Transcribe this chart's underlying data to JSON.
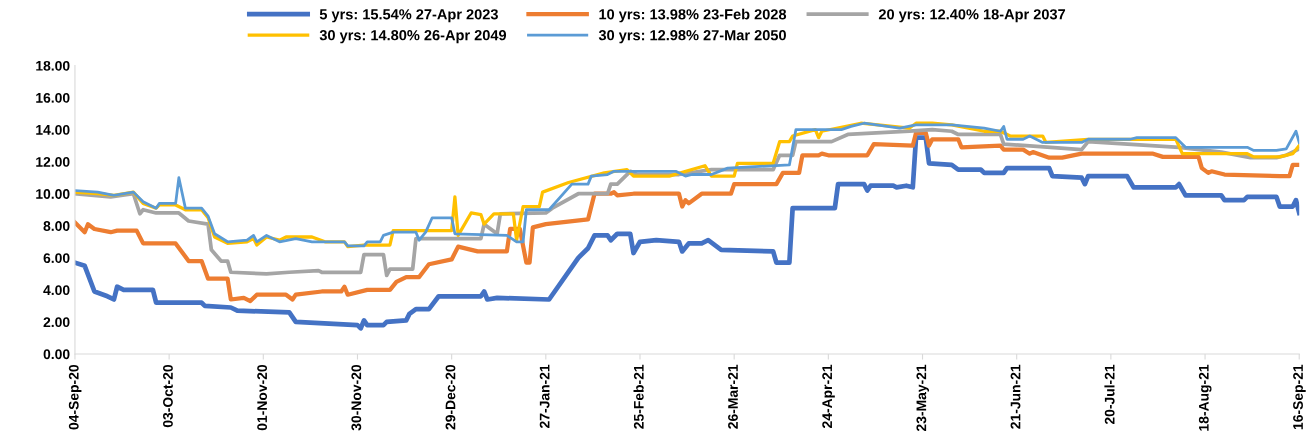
{
  "chart_data": {
    "type": "line",
    "legend": "top",
    "grid": false,
    "marker": "none",
    "line_style": "solid",
    "ylim": [
      0,
      18
    ],
    "yticks": [
      {
        "value": 0,
        "label": "0.00"
      },
      {
        "value": 2,
        "label": "2.00"
      },
      {
        "value": 4,
        "label": "4.00"
      },
      {
        "value": 6,
        "label": "6.00"
      },
      {
        "value": 8,
        "label": "8.00"
      },
      {
        "value": 10,
        "label": "10.00"
      },
      {
        "value": 12,
        "label": "12.00"
      },
      {
        "value": 14,
        "label": "14.00"
      },
      {
        "value": 16,
        "label": "16.00"
      },
      {
        "value": 18,
        "label": "18.00"
      }
    ],
    "xlim": [
      "2020-09-04",
      "2021-09-16"
    ],
    "xticks": [
      {
        "value": "2020-09-04",
        "label": "04-Sep-20"
      },
      {
        "value": "2020-10-03",
        "label": "03-Oct-20"
      },
      {
        "value": "2020-11-01",
        "label": "01-Nov-20"
      },
      {
        "value": "2020-11-30",
        "label": "30-Nov-20"
      },
      {
        "value": "2020-12-29",
        "label": "29-Dec-20"
      },
      {
        "value": "2021-01-27",
        "label": "27-Jan-21"
      },
      {
        "value": "2021-02-25",
        "label": "25-Feb-21"
      },
      {
        "value": "2021-03-26",
        "label": "26-Mar-21"
      },
      {
        "value": "2021-04-24",
        "label": "24-Apr-21"
      },
      {
        "value": "2021-05-23",
        "label": "23-May-21"
      },
      {
        "value": "2021-06-21",
        "label": "21-Jun-21"
      },
      {
        "value": "2021-07-20",
        "label": "20-Jul-21"
      },
      {
        "value": "2021-08-18",
        "label": "18-Aug-21"
      },
      {
        "value": "2021-09-16",
        "label": "16-Sep-21"
      }
    ],
    "series": [
      {
        "name": "5 yrs: 15.54% 27-Apr 2023",
        "color": "#4472c4",
        "x": [
          "2020-09-04",
          "2020-09-07",
          "2020-09-10",
          "2020-09-14",
          "2020-09-16",
          "2020-09-17",
          "2020-09-19",
          "2020-09-28",
          "2020-09-29",
          "2020-10-13",
          "2020-10-14",
          "2020-10-22",
          "2020-10-24",
          "2020-11-09",
          "2020-11-11",
          "2020-11-30",
          "2020-12-01",
          "2020-12-02",
          "2020-12-03",
          "2020-12-08",
          "2020-12-09",
          "2020-12-15",
          "2020-12-16",
          "2020-12-18",
          "2020-12-22",
          "2020-12-25",
          "2021-01-07",
          "2021-01-08",
          "2021-01-09",
          "2021-01-12",
          "2021-01-28",
          "2021-02-06",
          "2021-02-09",
          "2021-02-11",
          "2021-02-15",
          "2021-02-16",
          "2021-02-18",
          "2021-02-22",
          "2021-02-23",
          "2021-02-25",
          "2021-03-02",
          "2021-03-09",
          "2021-03-10",
          "2021-03-12",
          "2021-03-16",
          "2021-03-18",
          "2021-03-22",
          "2021-04-07",
          "2021-04-08",
          "2021-04-12",
          "2021-04-13",
          "2021-04-26",
          "2021-04-27",
          "2021-05-05",
          "2021-05-06",
          "2021-05-07",
          "2021-05-14",
          "2021-05-15",
          "2021-05-18",
          "2021-05-20",
          "2021-05-21",
          "2021-05-24",
          "2021-05-25",
          "2021-06-01",
          "2021-06-03",
          "2021-06-10",
          "2021-06-11",
          "2021-06-17",
          "2021-06-18",
          "2021-07-01",
          "2021-07-02",
          "2021-07-11",
          "2021-07-12",
          "2021-07-13",
          "2021-07-25",
          "2021-07-27",
          "2021-08-09",
          "2021-08-10",
          "2021-08-12",
          "2021-08-23",
          "2021-08-24",
          "2021-08-30",
          "2021-08-31",
          "2021-09-09",
          "2021-09-10",
          "2021-09-14",
          "2021-09-15",
          "2021-09-16"
        ],
        "values": [
          5.7,
          5.5,
          3.9,
          3.6,
          3.4,
          4.2,
          4.0,
          4.0,
          3.2,
          3.2,
          3.0,
          2.9,
          2.7,
          2.6,
          2.0,
          1.8,
          1.6,
          2.1,
          1.8,
          1.8,
          2.0,
          2.1,
          2.5,
          2.8,
          2.8,
          3.6,
          3.6,
          3.9,
          3.4,
          3.5,
          3.4,
          6.0,
          6.6,
          7.4,
          7.4,
          7.1,
          7.5,
          7.5,
          6.3,
          7.0,
          7.1,
          7.0,
          6.4,
          6.9,
          6.9,
          7.1,
          6.5,
          6.4,
          5.7,
          5.7,
          9.1,
          9.1,
          10.6,
          10.6,
          10.2,
          10.5,
          10.5,
          10.4,
          10.5,
          10.4,
          13.5,
          13.5,
          11.9,
          11.8,
          11.5,
          11.5,
          11.3,
          11.3,
          11.6,
          11.6,
          11.1,
          11.0,
          10.6,
          11.1,
          11.1,
          10.4,
          10.4,
          10.6,
          9.9,
          9.9,
          9.6,
          9.6,
          9.8,
          9.8,
          9.2,
          9.2,
          9.6,
          8.8
        ]
      },
      {
        "name": "10 yrs: 13.98% 23-Feb 2028",
        "color": "#ed7d31",
        "x": [
          "2020-09-04",
          "2020-09-07",
          "2020-09-08",
          "2020-09-10",
          "2020-09-15",
          "2020-09-17",
          "2020-09-23",
          "2020-09-25",
          "2020-10-05",
          "2020-10-09",
          "2020-10-13",
          "2020-10-15",
          "2020-10-21",
          "2020-10-22",
          "2020-10-26",
          "2020-10-28",
          "2020-10-30",
          "2020-11-08",
          "2020-11-10",
          "2020-11-11",
          "2020-11-19",
          "2020-11-25",
          "2020-11-26",
          "2020-11-27",
          "2020-12-03",
          "2020-12-10",
          "2020-12-12",
          "2020-12-15",
          "2020-12-19",
          "2020-12-22",
          "2020-12-29",
          "2020-12-31",
          "2021-01-06",
          "2021-01-15",
          "2021-01-16",
          "2021-01-19",
          "2021-01-21",
          "2021-01-22",
          "2021-01-23",
          "2021-01-27",
          "2021-02-09",
          "2021-02-11",
          "2021-02-16",
          "2021-02-17",
          "2021-02-18",
          "2021-02-23",
          "2021-03-09",
          "2021-03-10",
          "2021-03-11",
          "2021-03-12",
          "2021-03-16",
          "2021-03-25",
          "2021-03-26",
          "2021-04-08",
          "2021-04-10",
          "2021-04-15",
          "2021-04-16",
          "2021-04-21",
          "2021-04-22",
          "2021-04-24",
          "2021-05-06",
          "2021-05-08",
          "2021-05-20",
          "2021-05-21",
          "2021-05-24",
          "2021-05-25",
          "2021-05-26",
          "2021-06-03",
          "2021-06-04",
          "2021-06-16",
          "2021-06-17",
          "2021-06-23",
          "2021-06-25",
          "2021-06-26",
          "2021-07-01",
          "2021-07-05",
          "2021-07-11",
          "2021-08-02",
          "2021-08-05",
          "2021-08-16",
          "2021-08-17",
          "2021-08-19",
          "2021-08-20",
          "2021-08-24",
          "2021-09-10",
          "2021-09-13",
          "2021-09-14",
          "2021-09-16"
        ],
        "values": [
          8.2,
          7.6,
          8.1,
          7.8,
          7.6,
          7.7,
          7.7,
          6.9,
          6.9,
          5.8,
          5.8,
          4.7,
          4.7,
          3.4,
          3.5,
          3.3,
          3.7,
          3.7,
          3.4,
          3.7,
          3.9,
          3.9,
          4.2,
          3.7,
          4.0,
          4.0,
          4.5,
          4.8,
          4.8,
          5.6,
          5.9,
          6.7,
          6.4,
          6.4,
          7.8,
          7.8,
          5.7,
          5.7,
          7.9,
          8.1,
          8.4,
          10.0,
          10.0,
          10.1,
          9.9,
          10.0,
          10.0,
          9.2,
          9.6,
          9.4,
          10.0,
          10.0,
          10.6,
          10.6,
          11.3,
          11.3,
          12.4,
          12.4,
          12.5,
          12.4,
          12.4,
          13.1,
          13.0,
          13.8,
          13.8,
          13.0,
          13.4,
          13.4,
          12.9,
          13.0,
          12.75,
          12.75,
          12.5,
          12.6,
          12.25,
          12.25,
          12.5,
          12.5,
          12.3,
          12.3,
          11.6,
          11.3,
          11.4,
          11.2,
          11.1,
          11.1,
          11.8,
          11.8
        ]
      },
      {
        "name": "20 yrs: 12.40% 18-Apr 2037",
        "color": "#a5a5a5",
        "x": [
          "2020-09-04",
          "2020-09-15",
          "2020-09-22",
          "2020-09-24",
          "2020-09-25",
          "2020-09-29",
          "2020-10-06",
          "2020-10-09",
          "2020-10-15",
          "2020-10-16",
          "2020-10-19",
          "2020-10-21",
          "2020-10-22",
          "2020-11-02",
          "2020-11-09",
          "2020-11-18",
          "2020-11-19",
          "2020-12-01",
          "2020-12-02",
          "2020-12-08",
          "2020-12-09",
          "2020-12-10",
          "2020-12-17",
          "2020-12-18",
          "2021-01-07",
          "2021-01-08",
          "2021-01-10",
          "2021-01-12",
          "2021-01-13",
          "2021-01-27",
          "2021-01-29",
          "2021-02-06",
          "2021-02-15",
          "2021-02-16",
          "2021-02-18",
          "2021-02-22",
          "2021-02-24",
          "2021-03-09",
          "2021-03-19",
          "2021-04-07",
          "2021-04-09",
          "2021-04-13",
          "2021-04-14",
          "2021-04-25",
          "2021-04-30",
          "2021-05-19",
          "2021-05-26",
          "2021-06-01",
          "2021-06-03",
          "2021-06-16",
          "2021-06-17",
          "2021-07-11",
          "2021-07-13",
          "2021-08-10",
          "2021-08-23",
          "2021-09-01",
          "2021-09-09",
          "2021-09-12",
          "2021-09-16"
        ],
        "values": [
          10.0,
          9.8,
          10.0,
          8.75,
          9.0,
          8.8,
          8.8,
          8.3,
          8.1,
          6.5,
          5.8,
          5.8,
          5.1,
          5.0,
          5.1,
          5.2,
          5.1,
          5.1,
          6.2,
          6.2,
          4.9,
          5.3,
          5.3,
          7.2,
          7.2,
          8.1,
          7.8,
          7.5,
          8.75,
          8.8,
          9.1,
          10.0,
          10.0,
          10.6,
          10.6,
          11.4,
          11.2,
          11.2,
          11.5,
          11.5,
          12.4,
          12.4,
          13.25,
          13.25,
          13.7,
          13.9,
          14.0,
          13.9,
          13.7,
          13.7,
          13.1,
          12.75,
          13.25,
          12.9,
          12.6,
          12.25,
          12.25,
          12.4,
          12.8
        ]
      },
      {
        "name": "30 yrs: 14.80% 26-Apr 2049",
        "color": "#ffc000",
        "x": [
          "2020-09-04",
          "2020-09-11",
          "2020-09-16",
          "2020-09-22",
          "2020-09-25",
          "2020-09-29",
          "2020-09-30",
          "2020-10-05",
          "2020-10-08",
          "2020-10-13",
          "2020-10-15",
          "2020-10-17",
          "2020-10-21",
          "2020-10-27",
          "2020-10-29",
          "2020-10-30",
          "2020-11-02",
          "2020-11-06",
          "2020-11-08",
          "2020-11-16",
          "2020-11-20",
          "2020-11-26",
          "2020-11-27",
          "2020-12-02",
          "2020-12-10",
          "2020-12-11",
          "2020-12-29",
          "2020-12-30",
          "2020-12-31",
          "2021-01-04",
          "2021-01-07",
          "2021-01-08",
          "2021-01-11",
          "2021-01-17",
          "2021-01-18",
          "2021-01-20",
          "2021-01-25",
          "2021-01-26",
          "2021-02-03",
          "2021-02-14",
          "2021-02-21",
          "2021-02-23",
          "2021-03-06",
          "2021-03-17",
          "2021-03-19",
          "2021-03-26",
          "2021-03-27",
          "2021-04-07",
          "2021-04-09",
          "2021-04-12",
          "2021-04-13",
          "2021-04-20",
          "2021-04-21",
          "2021-04-22",
          "2021-05-04",
          "2021-05-19",
          "2021-05-21",
          "2021-05-26",
          "2021-06-01",
          "2021-06-11",
          "2021-06-16",
          "2021-06-19",
          "2021-06-29",
          "2021-06-30",
          "2021-07-13",
          "2021-08-09",
          "2021-08-11",
          "2021-08-31",
          "2021-09-02",
          "2021-09-10",
          "2021-09-14",
          "2021-09-16"
        ],
        "values": [
          10.1,
          10.0,
          9.9,
          10.1,
          9.4,
          9.1,
          9.3,
          9.3,
          9.0,
          9.0,
          8.5,
          7.3,
          6.9,
          7.0,
          7.2,
          6.8,
          7.3,
          7.1,
          7.3,
          7.3,
          7.0,
          7.0,
          6.7,
          6.8,
          6.8,
          7.7,
          7.7,
          9.8,
          7.4,
          8.8,
          8.7,
          8.1,
          8.75,
          8.75,
          7.1,
          9.2,
          9.2,
          10.1,
          10.7,
          11.3,
          11.5,
          11.1,
          11.1,
          11.75,
          11.1,
          11.1,
          11.9,
          11.9,
          13.25,
          13.25,
          13.6,
          14.0,
          13.5,
          13.9,
          14.4,
          14.1,
          14.4,
          14.4,
          14.3,
          13.9,
          13.9,
          13.6,
          13.6,
          13.2,
          13.4,
          13.4,
          12.5,
          12.5,
          12.3,
          12.3,
          12.5,
          13.0
        ]
      },
      {
        "name": "30 yrs: 12.98% 27-Mar 2050",
        "color": "#5b9bd5",
        "x": [
          "2020-09-04",
          "2020-09-11",
          "2020-09-16",
          "2020-09-22",
          "2020-09-25",
          "2020-09-29",
          "2020-09-30",
          "2020-10-05",
          "2020-10-06",
          "2020-10-08",
          "2020-10-13",
          "2020-10-15",
          "2020-10-17",
          "2020-10-21",
          "2020-10-27",
          "2020-10-29",
          "2020-10-30",
          "2020-11-02",
          "2020-11-06",
          "2020-11-11",
          "2020-11-16",
          "2020-11-26",
          "2020-11-27",
          "2020-12-02",
          "2020-12-03",
          "2020-12-07",
          "2020-12-08",
          "2020-12-11",
          "2020-12-18",
          "2020-12-19",
          "2020-12-21",
          "2020-12-23",
          "2020-12-29",
          "2020-12-30",
          "2021-01-15",
          "2021-01-18",
          "2021-01-20",
          "2021-01-21",
          "2021-01-28",
          "2021-02-04",
          "2021-02-09",
          "2021-02-10",
          "2021-02-15",
          "2021-02-17",
          "2021-03-08",
          "2021-03-11",
          "2021-03-13",
          "2021-03-19",
          "2021-03-24",
          "2021-04-12",
          "2021-04-14",
          "2021-04-28",
          "2021-05-01",
          "2021-05-05",
          "2021-05-16",
          "2021-05-21",
          "2021-06-01",
          "2021-06-11",
          "2021-06-16",
          "2021-06-17",
          "2021-06-18",
          "2021-06-23",
          "2021-06-25",
          "2021-06-29",
          "2021-07-11",
          "2021-07-13",
          "2021-07-26",
          "2021-07-28",
          "2021-08-09",
          "2021-08-12",
          "2021-08-31",
          "2021-09-02",
          "2021-09-09",
          "2021-09-12",
          "2021-09-15",
          "2021-09-16"
        ],
        "values": [
          10.2,
          10.1,
          9.9,
          10.1,
          9.5,
          9.1,
          9.4,
          9.4,
          11.0,
          9.1,
          9.1,
          8.6,
          7.5,
          7.0,
          7.1,
          7.4,
          7.0,
          7.4,
          7.0,
          7.2,
          7.0,
          7.0,
          6.75,
          6.75,
          7.0,
          7.0,
          7.4,
          7.6,
          7.6,
          7.1,
          7.6,
          8.5,
          8.5,
          7.5,
          7.4,
          7.0,
          7.0,
          9.0,
          9.0,
          10.6,
          10.6,
          11.1,
          11.2,
          11.4,
          11.4,
          11.1,
          11.2,
          11.2,
          11.6,
          11.8,
          14.0,
          14.0,
          14.2,
          14.4,
          14.1,
          14.3,
          14.3,
          14.1,
          13.9,
          14.2,
          13.4,
          13.4,
          13.6,
          13.2,
          13.2,
          13.4,
          13.4,
          13.5,
          13.5,
          12.9,
          12.9,
          12.7,
          12.7,
          12.8,
          13.9,
          13.2
        ]
      }
    ]
  }
}
